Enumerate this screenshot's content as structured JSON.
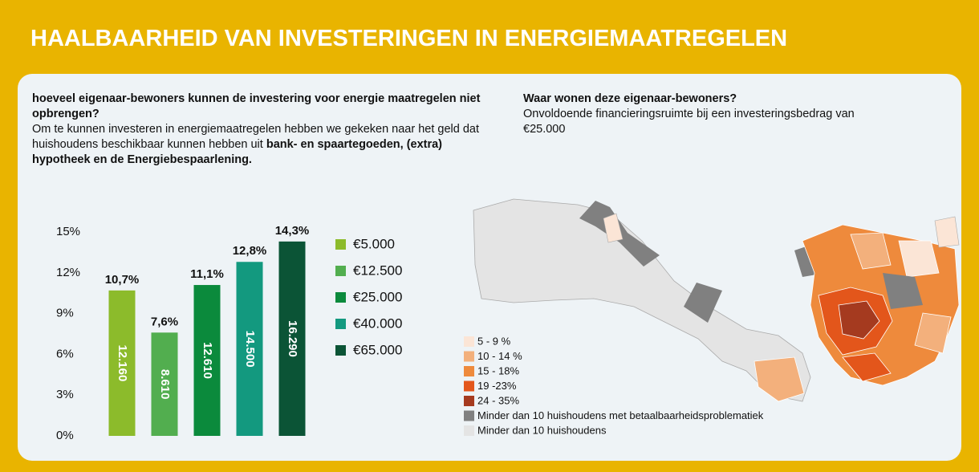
{
  "title": "HAALBAARHEID VAN INVESTERINGEN IN ENERGIEMAATREGELEN",
  "left": {
    "heading": "hoeveel eigenaar-bewoners kunnen de investering voor energie maatregelen niet opbrengen?",
    "body": "Om te kunnen investeren in energiemaatregelen hebben we gekeken naar het geld dat huishoudens beschikbaar kunnen hebben uit ",
    "body_bold": "bank- en spaartegoeden, (extra) hypotheek en de Energiebespaarlening."
  },
  "right": {
    "heading": "Waar wonen deze eigenaar-bewoners?",
    "body": "Onvoldoende financieringsruimte bij een investeringsbedrag van €25.000"
  },
  "chart_data": {
    "type": "bar",
    "categories": [
      "€5.000",
      "€12.500",
      "€25.000",
      "€40.000",
      "€65.000"
    ],
    "values": [
      10.7,
      7.6,
      11.1,
      12.8,
      14.3
    ],
    "value_labels": [
      "10,7%",
      "7,6%",
      "11,1%",
      "12,8%",
      "14,3%"
    ],
    "counts": [
      12160,
      8610,
      12610,
      14500,
      16290
    ],
    "count_labels": [
      "12.160",
      "8.610",
      "12.610",
      "14.500",
      "16.290"
    ],
    "colors": [
      "#8cbb2b",
      "#52ae4f",
      "#0b8a3c",
      "#13997f",
      "#0b5436"
    ],
    "ylim": [
      0,
      15
    ],
    "yticks": [
      {
        "value": 0,
        "label": "0%"
      },
      {
        "value": 3,
        "label": "3%"
      },
      {
        "value": 6,
        "label": "6%"
      },
      {
        "value": 9,
        "label": "9%"
      },
      {
        "value": 12,
        "label": "12%"
      },
      {
        "value": 15,
        "label": "15%"
      }
    ]
  },
  "map": {
    "legend": [
      {
        "label": "5 - 9 %",
        "color": "#fbe5d6"
      },
      {
        "label": "10 - 14 %",
        "color": "#f3b07c"
      },
      {
        "label": "15 - 18%",
        "color": "#ee8a3c"
      },
      {
        "label": "19 -23%",
        "color": "#e3561b"
      },
      {
        "label": "24 - 35%",
        "color": "#a53a1f"
      },
      {
        "label": "Minder dan 10 huishoudens met betaalbaarheidsproblematiek",
        "color": "#808080"
      },
      {
        "label": "Minder dan 10 huishoudens",
        "color": "#e4e4e4"
      }
    ]
  }
}
